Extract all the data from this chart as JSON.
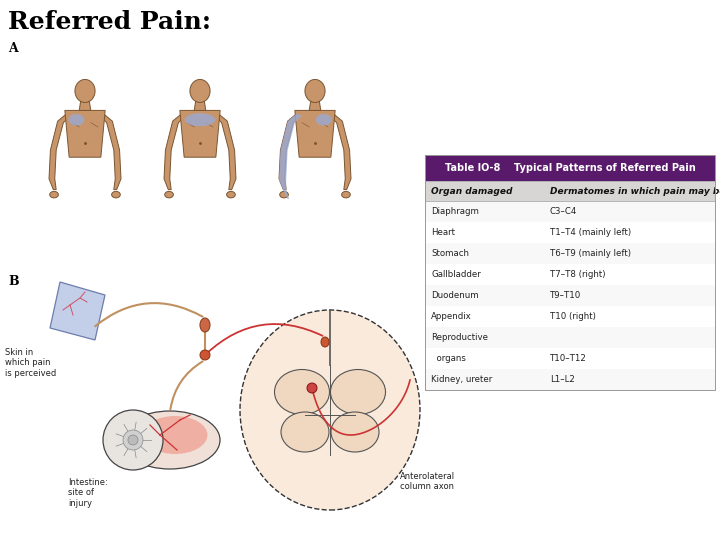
{
  "title": "Referred Pain:",
  "title_fontsize": 18,
  "title_color": "#000000",
  "title_font": "serif",
  "title_weight": "bold",
  "background_color": "#ffffff",
  "table_header": "Table IO-8    Typical Patterns of Referred Pain",
  "table_col1_header": "Organ damaged",
  "table_col2_header": "Dermatomes in which pain may be felt",
  "table_header_bg": "#5a1a6b",
  "table_header_color": "#ffffff",
  "table_subheader_bg": "#d8d5d5",
  "table_rows": [
    [
      "Diaphragm",
      "C3–C4"
    ],
    [
      "Heart",
      "T1–T4 (mainly left)"
    ],
    [
      "Stomach",
      "T6–T9 (mainly left)"
    ],
    [
      "Gallbladder",
      "T7–T8 (right)"
    ],
    [
      "Duodenum",
      "T9–T10"
    ],
    [
      "Appendix",
      "T10 (right)"
    ],
    [
      "Reproductive",
      ""
    ],
    [
      "  organs",
      "T10–T12"
    ],
    [
      "Kidney, ureter",
      "L1–L2"
    ]
  ],
  "label_A": "A",
  "label_B": "B",
  "label_skin": "Skin in\nwhich pain\nis perceived",
  "label_intestine": "Intestine:\nsite of\ninjury",
  "label_axon": "Anterolateral\ncolumn axon",
  "body_color": "#c8956b",
  "body_edge": "#7a5530",
  "highlight_blue": "#9aaad4",
  "highlight_alpha": 0.8,
  "fig_width": 7.2,
  "fig_height": 5.4,
  "dpi": 100
}
